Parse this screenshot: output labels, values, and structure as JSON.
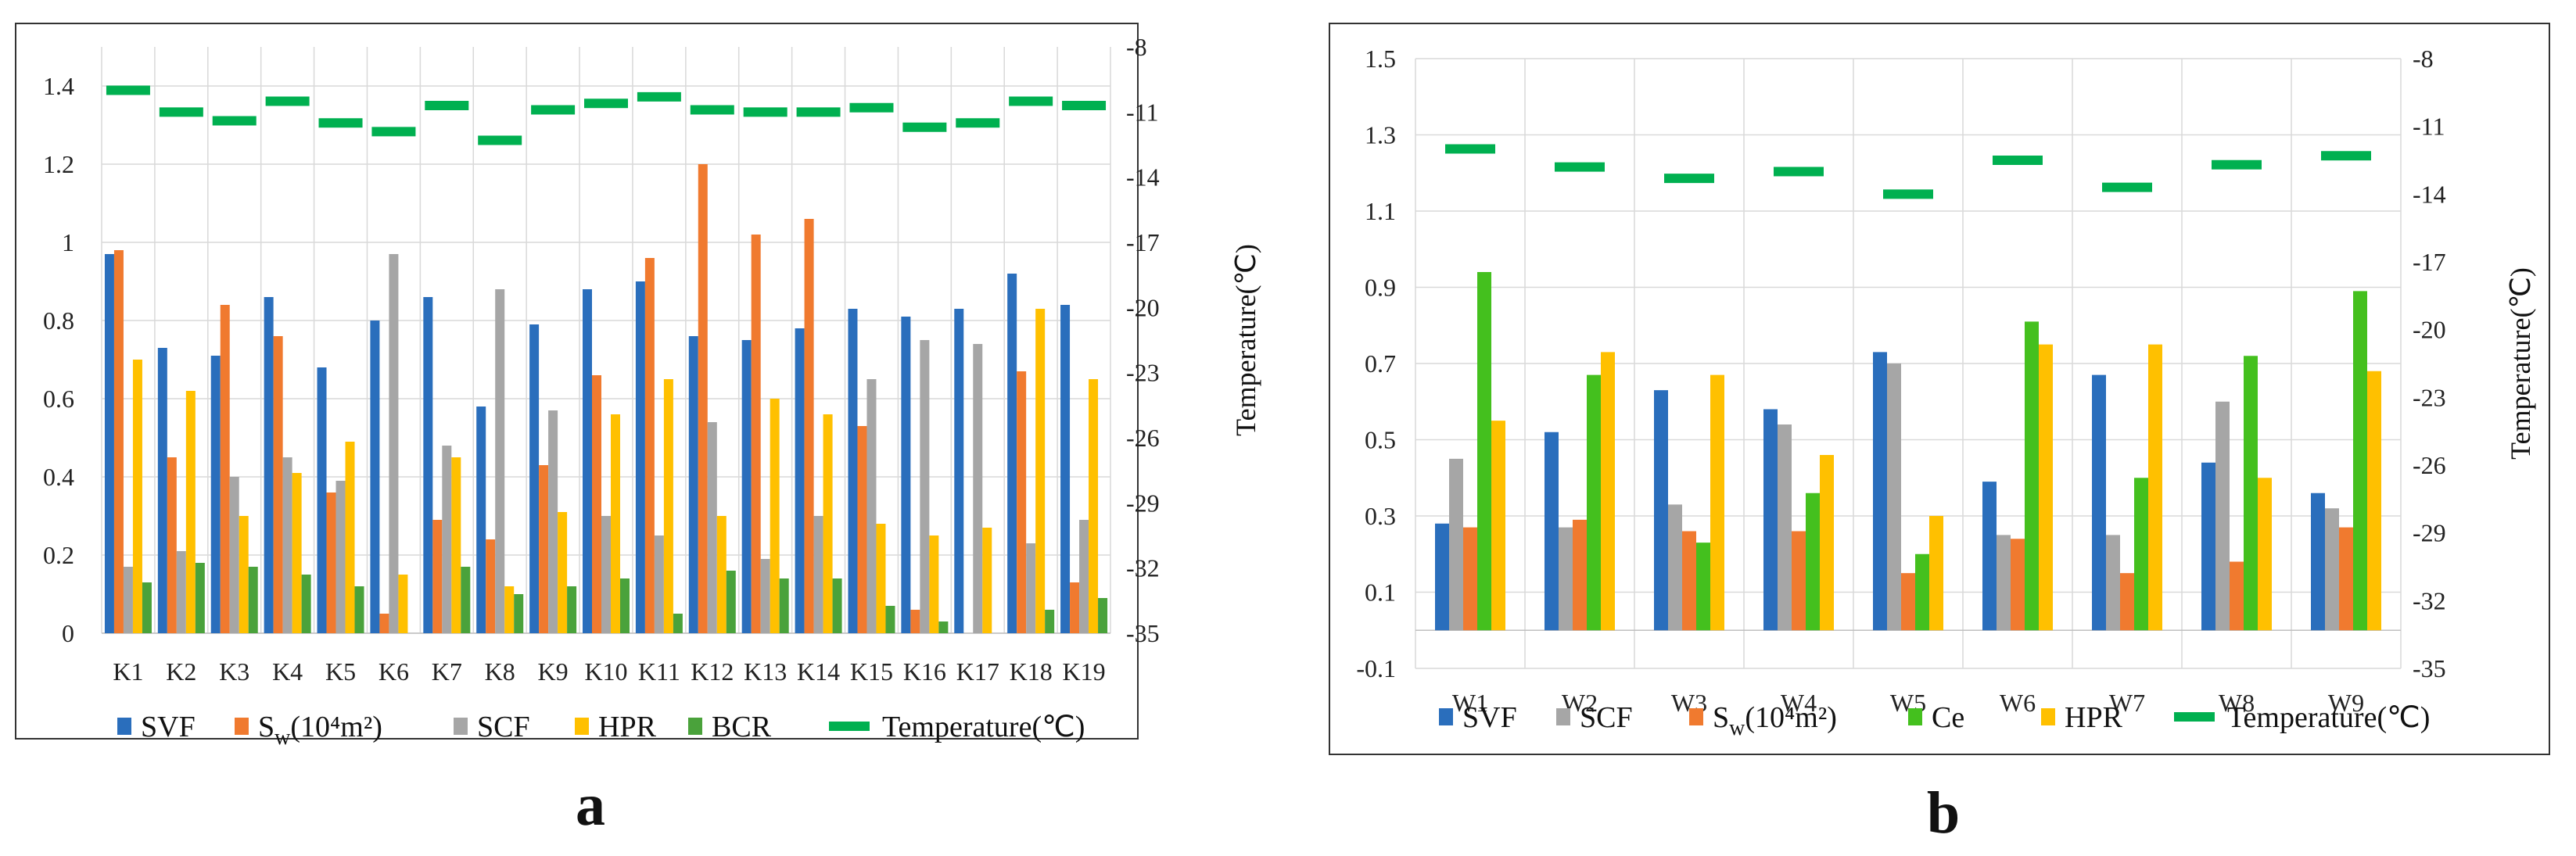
{
  "colors": {
    "SVF": "#2a6ebc",
    "Sw": "#f07a2f",
    "SCF": "#a6a6a6",
    "HPR": "#ffc000",
    "BCR": "#4aa23b",
    "Ce": "#44c01e",
    "Temperature": "#00b050",
    "grid": "#d9d9d9",
    "frame": "#333333"
  },
  "chart_data": [
    {
      "type": "bar",
      "panel_label": "a",
      "title": "",
      "xlabel": "",
      "ylabel": "",
      "y2label": "Temperature(℃)",
      "ylim": [
        0,
        1.5
      ],
      "yticks": [
        "0",
        "0.2",
        "0.4",
        "0.6",
        "0.8",
        "1",
        "1.2",
        "1.4"
      ],
      "y2lim": [
        -35,
        -8
      ],
      "y2ticks": [
        "-35",
        "-32",
        "-29",
        "-26",
        "-23",
        "-20",
        "-17",
        "-14",
        "-11",
        "-8"
      ],
      "categories": [
        "K1",
        "K2",
        "K3",
        "K4",
        "K5",
        "K6",
        "K7",
        "K8",
        "K9",
        "K10",
        "K11",
        "K12",
        "K13",
        "K14",
        "K15",
        "K16",
        "K17",
        "K18",
        "K19"
      ],
      "series": [
        {
          "name": "SVF",
          "key": "SVF",
          "legend_label": "SVF",
          "values": [
            0.97,
            0.73,
            0.71,
            0.86,
            0.68,
            0.8,
            0.86,
            0.58,
            0.79,
            0.88,
            0.9,
            0.76,
            0.75,
            0.78,
            0.83,
            0.81,
            0.83,
            0.92,
            0.84
          ]
        },
        {
          "name": "Sw",
          "key": "Sw",
          "legend_label": "S",
          "legend_sub": "w",
          "legend_rest": "(10⁴m²)",
          "values": [
            0.98,
            0.45,
            0.84,
            0.76,
            0.36,
            0.05,
            0.29,
            0.24,
            0.43,
            0.66,
            0.96,
            1.2,
            1.02,
            1.06,
            0.53,
            0.06,
            0.0,
            0.67,
            0.13
          ]
        },
        {
          "name": "SCF",
          "key": "SCF",
          "legend_label": "SCF",
          "values": [
            0.17,
            0.21,
            0.4,
            0.45,
            0.39,
            0.97,
            0.48,
            0.88,
            0.57,
            0.3,
            0.25,
            0.54,
            0.19,
            0.3,
            0.65,
            0.75,
            0.74,
            0.23,
            0.29
          ]
        },
        {
          "name": "HPR",
          "key": "HPR",
          "legend_label": "HPR",
          "values": [
            0.7,
            0.62,
            0.3,
            0.41,
            0.49,
            0.15,
            0.45,
            0.12,
            0.31,
            0.56,
            0.65,
            0.3,
            0.6,
            0.56,
            0.28,
            0.25,
            0.27,
            0.83,
            0.65
          ]
        },
        {
          "name": "BCR",
          "key": "BCR",
          "legend_label": "BCR",
          "values": [
            0.13,
            0.18,
            0.17,
            0.15,
            0.12,
            0.0,
            0.17,
            0.1,
            0.12,
            0.14,
            0.05,
            0.16,
            0.14,
            0.14,
            0.07,
            0.03,
            0.0,
            0.06,
            0.09
          ]
        }
      ],
      "temperature": {
        "name": "Temperature",
        "legend_label": "Temperature(℃)",
        "values": [
          -10.0,
          -11.0,
          -11.4,
          -10.5,
          -11.5,
          -11.9,
          -10.7,
          -12.3,
          -10.9,
          -10.6,
          -10.3,
          -10.9,
          -11.0,
          -11.0,
          -10.8,
          -11.7,
          -11.5,
          -10.5,
          -10.7
        ]
      },
      "legend_position": "bottom"
    },
    {
      "type": "bar",
      "panel_label": "b",
      "title": "",
      "xlabel": "",
      "ylabel": "",
      "y2label": "Temperature(℃)",
      "ylim": [
        -0.1,
        1.5
      ],
      "yticks": [
        "-0.1",
        "0.1",
        "0.3",
        "0.5",
        "0.7",
        "0.9",
        "1.1",
        "1.3",
        "1.5"
      ],
      "y2lim": [
        -35,
        -8
      ],
      "y2ticks": [
        "-35",
        "-32",
        "-29",
        "-26",
        "-23",
        "-20",
        "-17",
        "-14",
        "-11",
        "-8"
      ],
      "categories": [
        "W1",
        "W2",
        "W3",
        "W4",
        "W5",
        "W6",
        "W7",
        "W8",
        "W9"
      ],
      "series": [
        {
          "name": "SVF",
          "key": "SVF",
          "legend_label": "SVF",
          "values": [
            0.28,
            0.52,
            0.63,
            0.58,
            0.73,
            0.39,
            0.67,
            0.44,
            0.36
          ]
        },
        {
          "name": "SCF",
          "key": "SCF",
          "legend_label": "SCF",
          "values": [
            0.45,
            0.27,
            0.33,
            0.54,
            0.7,
            0.25,
            0.25,
            0.6,
            0.32
          ]
        },
        {
          "name": "Sw",
          "key": "Sw",
          "legend_label": "S",
          "legend_sub": "w",
          "legend_rest": "(10⁴m²)",
          "values": [
            0.27,
            0.29,
            0.26,
            0.26,
            0.15,
            0.24,
            0.15,
            0.18,
            0.27
          ]
        },
        {
          "name": "Ce",
          "key": "Ce",
          "legend_label": "Ce",
          "values": [
            0.94,
            0.67,
            0.23,
            0.36,
            0.2,
            0.81,
            0.4,
            0.72,
            0.89
          ]
        },
        {
          "name": "HPR",
          "key": "HPR",
          "legend_label": "HPR",
          "values": [
            0.55,
            0.73,
            0.67,
            0.46,
            0.3,
            0.75,
            0.75,
            0.4,
            0.68
          ]
        }
      ],
      "temperature": {
        "name": "Temperature",
        "legend_label": "Temperature(℃)",
        "values": [
          -12.0,
          -12.8,
          -13.3,
          -13.0,
          -14.0,
          -12.5,
          -13.7,
          -12.7,
          -12.3
        ]
      },
      "legend_position": "bottom"
    }
  ]
}
